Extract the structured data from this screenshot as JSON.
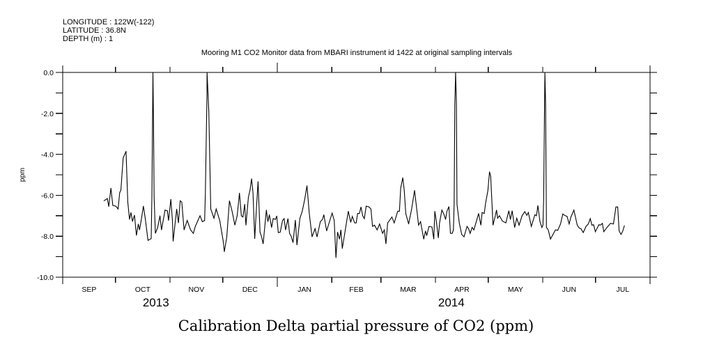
{
  "header": {
    "longitude": "LONGITUDE : 122W(-122)",
    "latitude": "LATITUDE : 36.8N",
    "depth": "DEPTH (m) : 1"
  },
  "chart_data": {
    "type": "line",
    "title": "Mooring M1 CO2 Monitor data from MBARI instrument id 1422 at original sampling intervals",
    "xlabel": "Calibration Delta partial pressure of CO2 (ppm)",
    "ylabel": "ppm",
    "x_units": "days since 2013-09-01",
    "xlim": [
      0,
      334
    ],
    "ylim": [
      -10,
      0
    ],
    "yticks": [
      0,
      -2,
      -4,
      -6,
      -8,
      -10
    ],
    "ytick_labels": [
      "0.0",
      "-2.0",
      "-4.0",
      "-6.0",
      "-8.0",
      "-10.0"
    ],
    "yminor_step": 1,
    "month_boundaries": [
      0,
      30,
      61,
      91,
      122,
      153,
      181,
      212,
      242,
      273,
      303,
      334
    ],
    "year_boundary": 122,
    "months": [
      {
        "label": "SEP",
        "start": 0,
        "end": 30
      },
      {
        "label": "OCT",
        "start": 30,
        "end": 61
      },
      {
        "label": "NOV",
        "start": 61,
        "end": 91
      },
      {
        "label": "DEC",
        "start": 91,
        "end": 122
      },
      {
        "label": "JAN",
        "start": 122,
        "end": 153
      },
      {
        "label": "FEB",
        "start": 153,
        "end": 181
      },
      {
        "label": "MAR",
        "start": 181,
        "end": 212
      },
      {
        "label": "APR",
        "start": 212,
        "end": 242
      },
      {
        "label": "MAY",
        "start": 242,
        "end": 273
      },
      {
        "label": "JUN",
        "start": 273,
        "end": 303
      },
      {
        "label": "JUL",
        "start": 303,
        "end": 334
      }
    ],
    "years": [
      {
        "label": "2013",
        "at": 53
      },
      {
        "label": "2014",
        "at": 221
      }
    ],
    "grid": false,
    "series": [
      {
        "name": "Calibration Delta pCO2",
        "points": [
          [
            23.4,
            -6.27
          ],
          [
            25.4,
            -6.16
          ],
          [
            26.2,
            -6.55
          ],
          [
            27.4,
            -5.65
          ],
          [
            28.5,
            -6.5
          ],
          [
            30.2,
            -6.53
          ],
          [
            31.5,
            -6.67
          ],
          [
            32.4,
            -5.87
          ],
          [
            33.1,
            -5.75
          ],
          [
            34.4,
            -4.17
          ],
          [
            36.0,
            -3.85
          ],
          [
            37.0,
            -6.33
          ],
          [
            38.0,
            -7.18
          ],
          [
            38.8,
            -6.84
          ],
          [
            39.7,
            -7.28
          ],
          [
            40.8,
            -6.97
          ],
          [
            41.9,
            -7.96
          ],
          [
            43.0,
            -7.4
          ],
          [
            43.7,
            -7.69
          ],
          [
            44.6,
            -7.23
          ],
          [
            45.9,
            -6.53
          ],
          [
            46.9,
            -7.11
          ],
          [
            48.5,
            -8.2
          ],
          [
            50.3,
            -8.12
          ],
          [
            50.7,
            -6.1
          ],
          [
            51.2,
            -1.33
          ],
          [
            51.3,
            0.0
          ],
          [
            51.6,
            -2.0
          ],
          [
            52.0,
            -6.09
          ],
          [
            52.7,
            -7.86
          ],
          [
            54.0,
            -7.57
          ],
          [
            55.3,
            -7.0
          ],
          [
            56.2,
            -7.69
          ],
          [
            58.2,
            -6.72
          ],
          [
            59.5,
            -6.76
          ],
          [
            60.2,
            -7.23
          ],
          [
            61.5,
            -6.19
          ],
          [
            62.4,
            -7.23
          ],
          [
            62.8,
            -8.25
          ],
          [
            64.8,
            -6.67
          ],
          [
            65.8,
            -7.35
          ],
          [
            66.8,
            -6.27
          ],
          [
            67.7,
            -6.33
          ],
          [
            69.0,
            -7.69
          ],
          [
            70.8,
            -7.23
          ],
          [
            72.7,
            -7.69
          ],
          [
            74.3,
            -7.86
          ],
          [
            75.4,
            -7.52
          ],
          [
            78.1,
            -7.0
          ],
          [
            79.4,
            -7.29
          ],
          [
            80.7,
            -7.23
          ],
          [
            81.1,
            -5.99
          ],
          [
            82.0,
            -1.22
          ],
          [
            82.1,
            0.0
          ],
          [
            83.1,
            -1.9
          ],
          [
            84.2,
            -6.67
          ],
          [
            86.0,
            -7.12
          ],
          [
            87.3,
            -6.67
          ],
          [
            89.3,
            -7.23
          ],
          [
            91.3,
            -8.25
          ],
          [
            91.9,
            -8.76
          ],
          [
            93.3,
            -8.03
          ],
          [
            94.8,
            -6.27
          ],
          [
            96.3,
            -6.78
          ],
          [
            97.9,
            -7.46
          ],
          [
            99.2,
            -7.0
          ],
          [
            100.5,
            -5.89
          ],
          [
            101.6,
            -7.0
          ],
          [
            102.5,
            -7.06
          ],
          [
            103.5,
            -6.44
          ],
          [
            104.2,
            -7.46
          ],
          [
            105.6,
            -6.1
          ],
          [
            106.5,
            -5.76
          ],
          [
            107.4,
            -5.19
          ],
          [
            108.2,
            -5.87
          ],
          [
            109.2,
            -8.12
          ],
          [
            110.0,
            -6.89
          ],
          [
            111.1,
            -5.33
          ],
          [
            112.2,
            -7.8
          ],
          [
            113.1,
            -8.03
          ],
          [
            114.0,
            -8.37
          ],
          [
            115.8,
            -6.72
          ],
          [
            116.7,
            -7.29
          ],
          [
            117.5,
            -6.95
          ],
          [
            118.8,
            -7.57
          ],
          [
            119.7,
            -7.14
          ],
          [
            121.0,
            -7.18
          ],
          [
            121.7,
            -7.01
          ],
          [
            122.6,
            -7.82
          ],
          [
            123.7,
            -7.8
          ],
          [
            125.0,
            -7.23
          ],
          [
            125.9,
            -7.14
          ],
          [
            126.7,
            -7.69
          ],
          [
            128.1,
            -7.14
          ],
          [
            129.0,
            -7.86
          ],
          [
            129.9,
            -8.0
          ],
          [
            131.0,
            -8.31
          ],
          [
            132.3,
            -7.21
          ],
          [
            133.2,
            -8.43
          ],
          [
            134.9,
            -7.12
          ],
          [
            136.2,
            -6.78
          ],
          [
            137.6,
            -6.21
          ],
          [
            138.9,
            -5.53
          ],
          [
            140.2,
            -6.89
          ],
          [
            141.8,
            -8.03
          ],
          [
            143.5,
            -7.63
          ],
          [
            144.6,
            -8.03
          ],
          [
            146.5,
            -7.29
          ],
          [
            147.7,
            -7.18
          ],
          [
            148.5,
            -6.95
          ],
          [
            150.1,
            -7.74
          ],
          [
            151.9,
            -7.23
          ],
          [
            153.2,
            -6.87
          ],
          [
            154.4,
            -7.23
          ],
          [
            155.4,
            -9.05
          ],
          [
            156.3,
            -7.8
          ],
          [
            157.4,
            -8.14
          ],
          [
            158.2,
            -7.69
          ],
          [
            159.0,
            -8.6
          ],
          [
            160.7,
            -7.69
          ],
          [
            162.4,
            -6.78
          ],
          [
            163.8,
            -7.32
          ],
          [
            164.7,
            -7.03
          ],
          [
            166.0,
            -7.35
          ],
          [
            166.9,
            -7.35
          ],
          [
            167.7,
            -6.89
          ],
          [
            168.7,
            -6.89
          ],
          [
            169.6,
            -6.57
          ],
          [
            170.6,
            -7.0
          ],
          [
            171.5,
            -7.14
          ],
          [
            172.6,
            -6.53
          ],
          [
            174.2,
            -6.57
          ],
          [
            175.3,
            -6.67
          ],
          [
            176.2,
            -7.52
          ],
          [
            177.3,
            -7.46
          ],
          [
            178.8,
            -7.69
          ],
          [
            180.2,
            -7.4
          ],
          [
            181.9,
            -7.86
          ],
          [
            182.9,
            -7.69
          ],
          [
            183.8,
            -8.37
          ],
          [
            184.8,
            -7.35
          ],
          [
            185.8,
            -7.23
          ],
          [
            187.2,
            -7.06
          ],
          [
            188.5,
            -7.35
          ],
          [
            190.5,
            -6.78
          ],
          [
            191.5,
            -6.78
          ],
          [
            192.2,
            -5.65
          ],
          [
            193.4,
            -5.14
          ],
          [
            194.2,
            -5.76
          ],
          [
            195.1,
            -6.89
          ],
          [
            196.7,
            -7.4
          ],
          [
            198.4,
            -6.67
          ],
          [
            200.1,
            -5.76
          ],
          [
            201.3,
            -6.67
          ],
          [
            202.4,
            -7.46
          ],
          [
            203.5,
            -7.29
          ],
          [
            205.3,
            -8.14
          ],
          [
            206.3,
            -7.74
          ],
          [
            207.0,
            -7.97
          ],
          [
            208.3,
            -7.52
          ],
          [
            210.0,
            -7.55
          ],
          [
            211.0,
            -8.14
          ],
          [
            211.6,
            -6.78
          ],
          [
            212.6,
            -7.35
          ],
          [
            213.6,
            -8.08
          ],
          [
            214.3,
            -7.35
          ],
          [
            215.6,
            -6.72
          ],
          [
            216.9,
            -6.95
          ],
          [
            217.7,
            -7.18
          ],
          [
            218.5,
            -6.78
          ],
          [
            219.6,
            -6.55
          ],
          [
            220.5,
            -7.86
          ],
          [
            221.5,
            -7.86
          ],
          [
            222.2,
            -7.69
          ],
          [
            222.6,
            -6.44
          ],
          [
            223.0,
            -1.56
          ],
          [
            223.4,
            0.0
          ],
          [
            223.9,
            -1.56
          ],
          [
            224.2,
            -6.44
          ],
          [
            225.5,
            -7.35
          ],
          [
            226.9,
            -7.91
          ],
          [
            228.2,
            -8.03
          ],
          [
            229.9,
            -7.52
          ],
          [
            230.8,
            -7.63
          ],
          [
            231.7,
            -7.86
          ],
          [
            232.8,
            -7.57
          ],
          [
            233.8,
            -7.69
          ],
          [
            235.2,
            -7.29
          ],
          [
            236.5,
            -6.89
          ],
          [
            237.8,
            -7.46
          ],
          [
            238.5,
            -6.84
          ],
          [
            239.7,
            -6.89
          ],
          [
            240.5,
            -6.38
          ],
          [
            241.8,
            -5.76
          ],
          [
            242.7,
            -4.85
          ],
          [
            243.4,
            -5.08
          ],
          [
            244.7,
            -7.46
          ],
          [
            246.0,
            -7.0
          ],
          [
            246.7,
            -6.72
          ],
          [
            247.3,
            -7.12
          ],
          [
            248.4,
            -7.0
          ],
          [
            250.0,
            -7.26
          ],
          [
            252.0,
            -7.35
          ],
          [
            253.7,
            -6.76
          ],
          [
            254.6,
            -7.18
          ],
          [
            255.6,
            -6.76
          ],
          [
            257.0,
            -7.57
          ],
          [
            258.2,
            -7.12
          ],
          [
            259.5,
            -7.46
          ],
          [
            261.2,
            -7.0
          ],
          [
            262.8,
            -6.8
          ],
          [
            263.9,
            -6.98
          ],
          [
            264.8,
            -6.84
          ],
          [
            266.5,
            -7.52
          ],
          [
            268.5,
            -6.95
          ],
          [
            269.4,
            -7.0
          ],
          [
            270.2,
            -6.5
          ],
          [
            271.4,
            -7.29
          ],
          [
            272.5,
            -7.57
          ],
          [
            273.1,
            -7.46
          ],
          [
            273.5,
            -6.21
          ],
          [
            274.0,
            -1.56
          ],
          [
            274.2,
            0.0
          ],
          [
            274.6,
            -1.56
          ],
          [
            275.1,
            -7.57
          ],
          [
            276.1,
            -7.69
          ],
          [
            277.4,
            -8.14
          ],
          [
            278.8,
            -7.91
          ],
          [
            280.2,
            -7.69
          ],
          [
            281.5,
            -7.71
          ],
          [
            283.1,
            -7.4
          ],
          [
            284.4,
            -6.91
          ],
          [
            285.4,
            -6.98
          ],
          [
            286.8,
            -7.03
          ],
          [
            288.0,
            -7.4
          ],
          [
            289.0,
            -7.06
          ],
          [
            290.7,
            -6.72
          ],
          [
            292.6,
            -7.46
          ],
          [
            293.7,
            -7.6
          ],
          [
            294.7,
            -7.63
          ],
          [
            296.0,
            -7.82
          ],
          [
            297.6,
            -7.52
          ],
          [
            298.9,
            -7.4
          ],
          [
            300.0,
            -7.14
          ],
          [
            300.9,
            -7.46
          ],
          [
            301.9,
            -7.44
          ],
          [
            302.9,
            -7.78
          ],
          [
            304.9,
            -7.44
          ],
          [
            305.8,
            -7.46
          ],
          [
            306.9,
            -7.37
          ],
          [
            307.7,
            -7.78
          ],
          [
            309.5,
            -7.57
          ],
          [
            311.5,
            -7.37
          ],
          [
            313.2,
            -7.4
          ],
          [
            314.6,
            -6.57
          ],
          [
            315.6,
            -6.57
          ],
          [
            316.4,
            -7.74
          ],
          [
            317.5,
            -7.91
          ],
          [
            318.5,
            -7.74
          ],
          [
            319.4,
            -7.48
          ]
        ]
      }
    ]
  }
}
